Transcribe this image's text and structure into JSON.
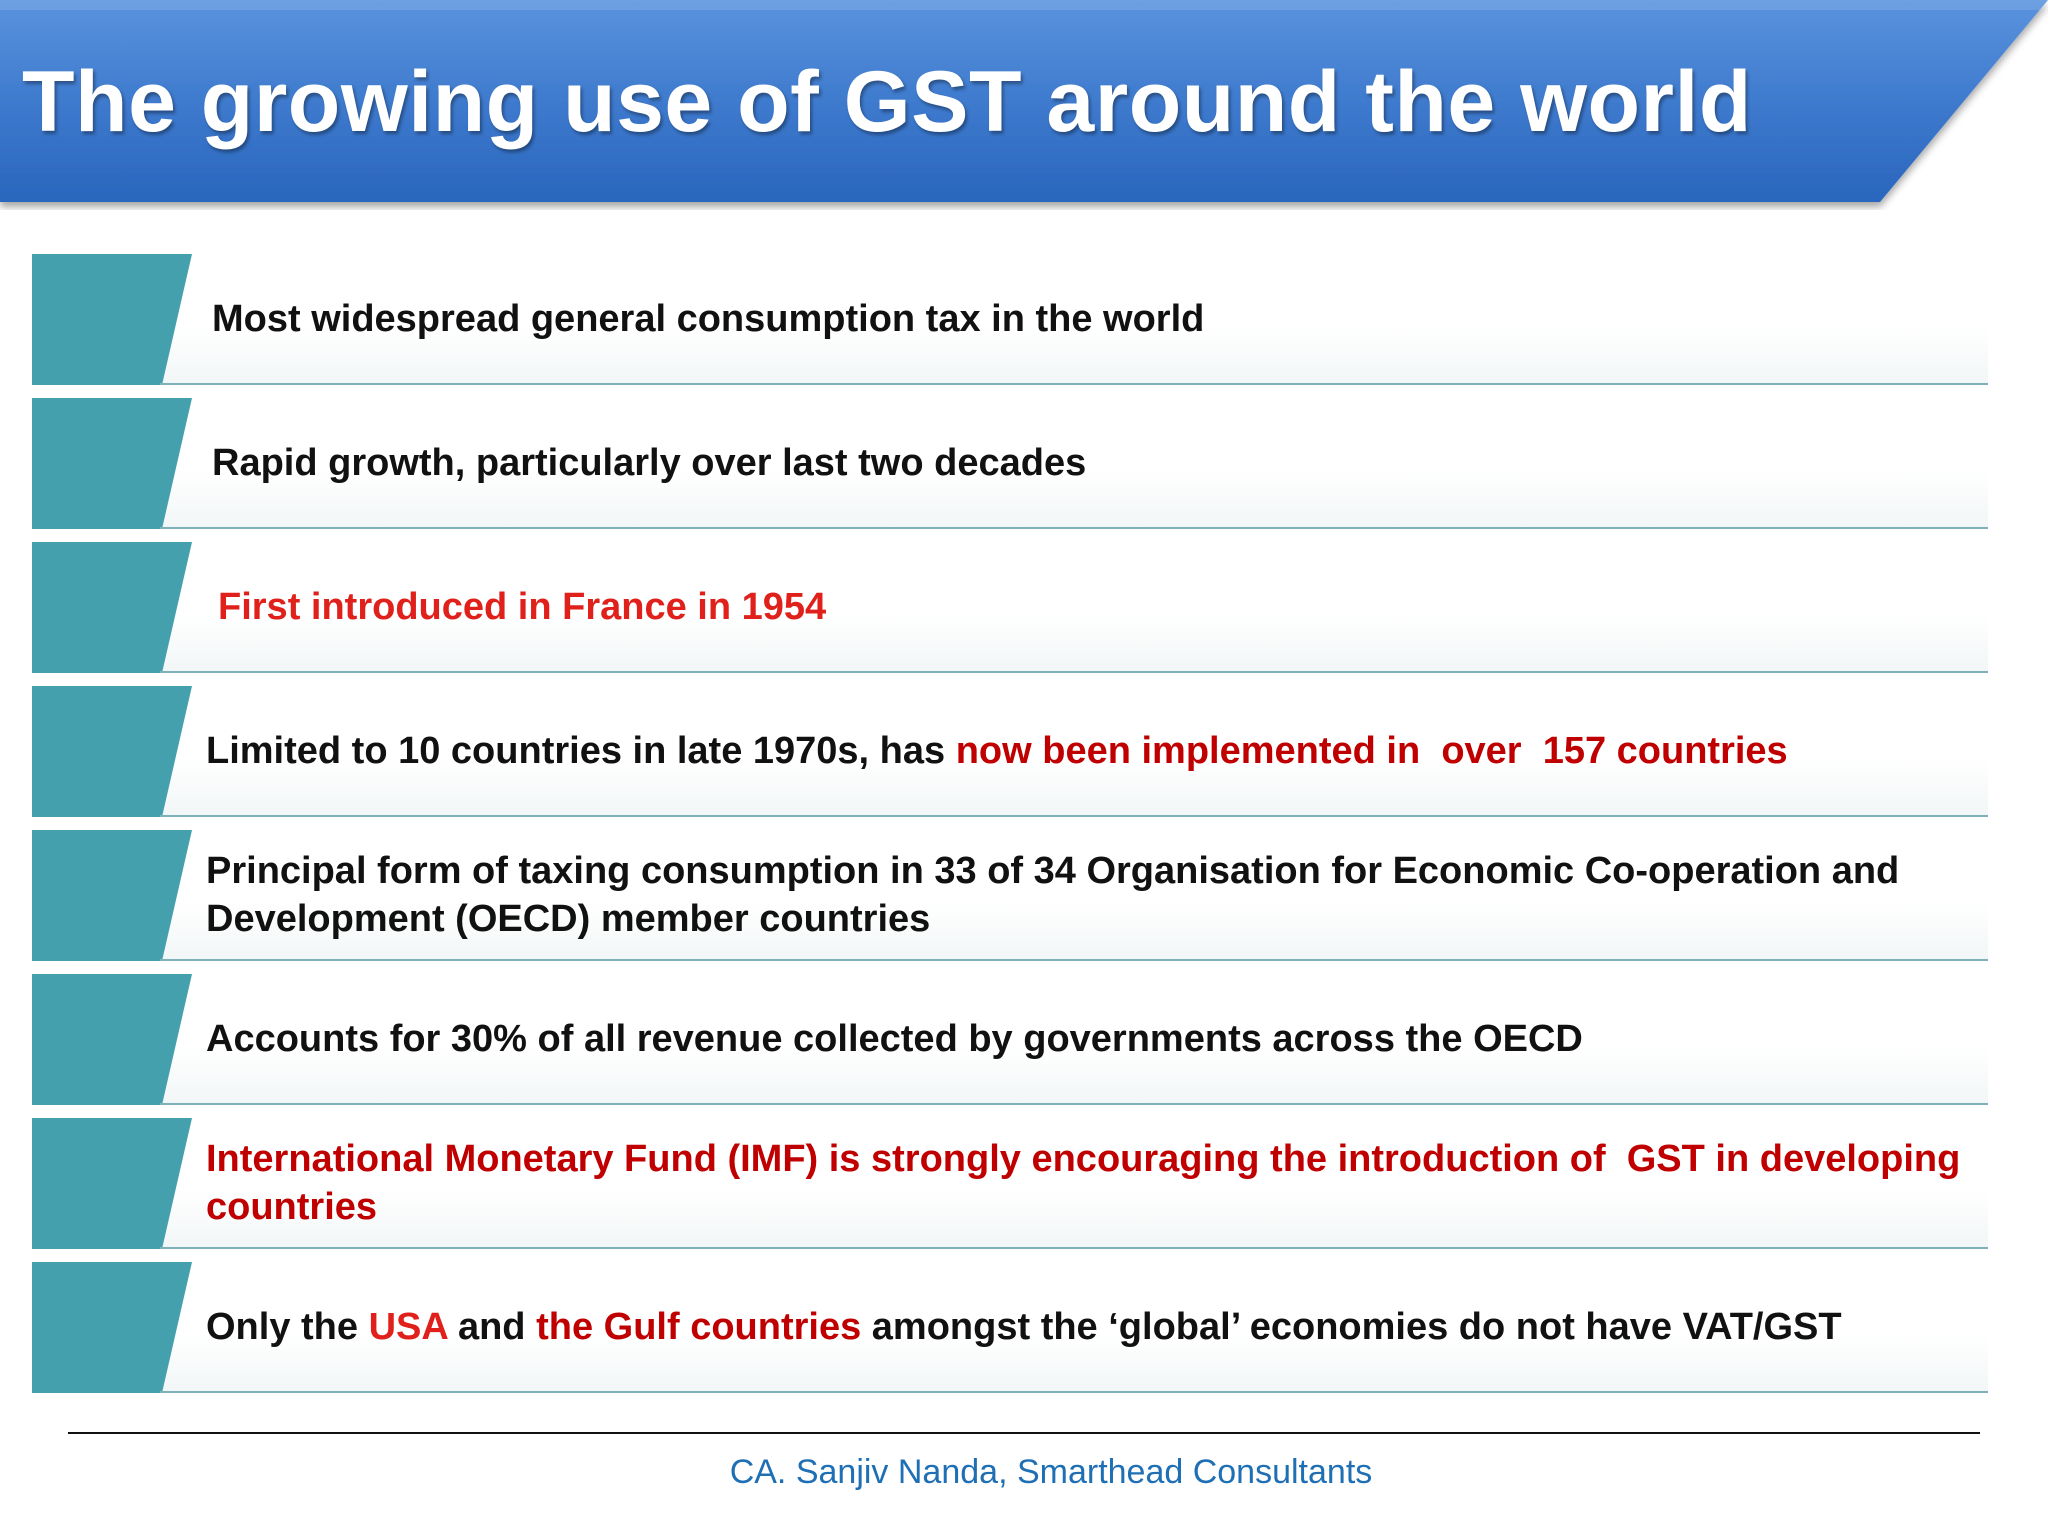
{
  "slide": {
    "title": "The growing use of GST around the world",
    "colors": {
      "banner_top": "#5a93de",
      "banner_bottom": "#2a66bd",
      "tab": "#45a0ad",
      "text": "#111111",
      "highlight_red": "#e0201b",
      "highlight_darkred": "#c00000",
      "footer": "#1f6fb5"
    },
    "rows": [
      {
        "segments": [
          {
            "text": "Most widespread general consumption tax in the world",
            "color": "black"
          }
        ]
      },
      {
        "segments": [
          {
            "text": "Rapid growth, particularly over last two decades",
            "color": "black"
          }
        ]
      },
      {
        "segments": [
          {
            "text": "First introduced in France in 1954",
            "color": "red"
          }
        ]
      },
      {
        "segments": [
          {
            "text": "Limited to 10 countries in late 1970s, has ",
            "color": "black"
          },
          {
            "text": "now been implemented in  over  157 countries",
            "color": "darkred"
          }
        ]
      },
      {
        "segments": [
          {
            "text": "Principal form of taxing consumption in 33 of 34 Organisation for Economic Co-operation and Development (OECD) member countries",
            "color": "black"
          }
        ]
      },
      {
        "segments": [
          {
            "text": "Accounts for 30% of all revenue collected by governments across the OECD",
            "color": "black"
          }
        ]
      },
      {
        "segments": [
          {
            "text": "International Monetary Fund (IMF) is strongly encouraging the introduction of  GST in developing countries",
            "color": "darkred"
          }
        ]
      },
      {
        "segments": [
          {
            "text": "Only the ",
            "color": "black"
          },
          {
            "text": "USA",
            "color": "red"
          },
          {
            "text": " and ",
            "color": "black"
          },
          {
            "text": "the Gulf countries",
            "color": "darkred"
          },
          {
            "text": " amongst the ‘global’ economies do not have VAT/GST",
            "color": "black"
          }
        ]
      }
    ],
    "footer": "CA. Sanjiv Nanda, Smarthead Consultants"
  }
}
